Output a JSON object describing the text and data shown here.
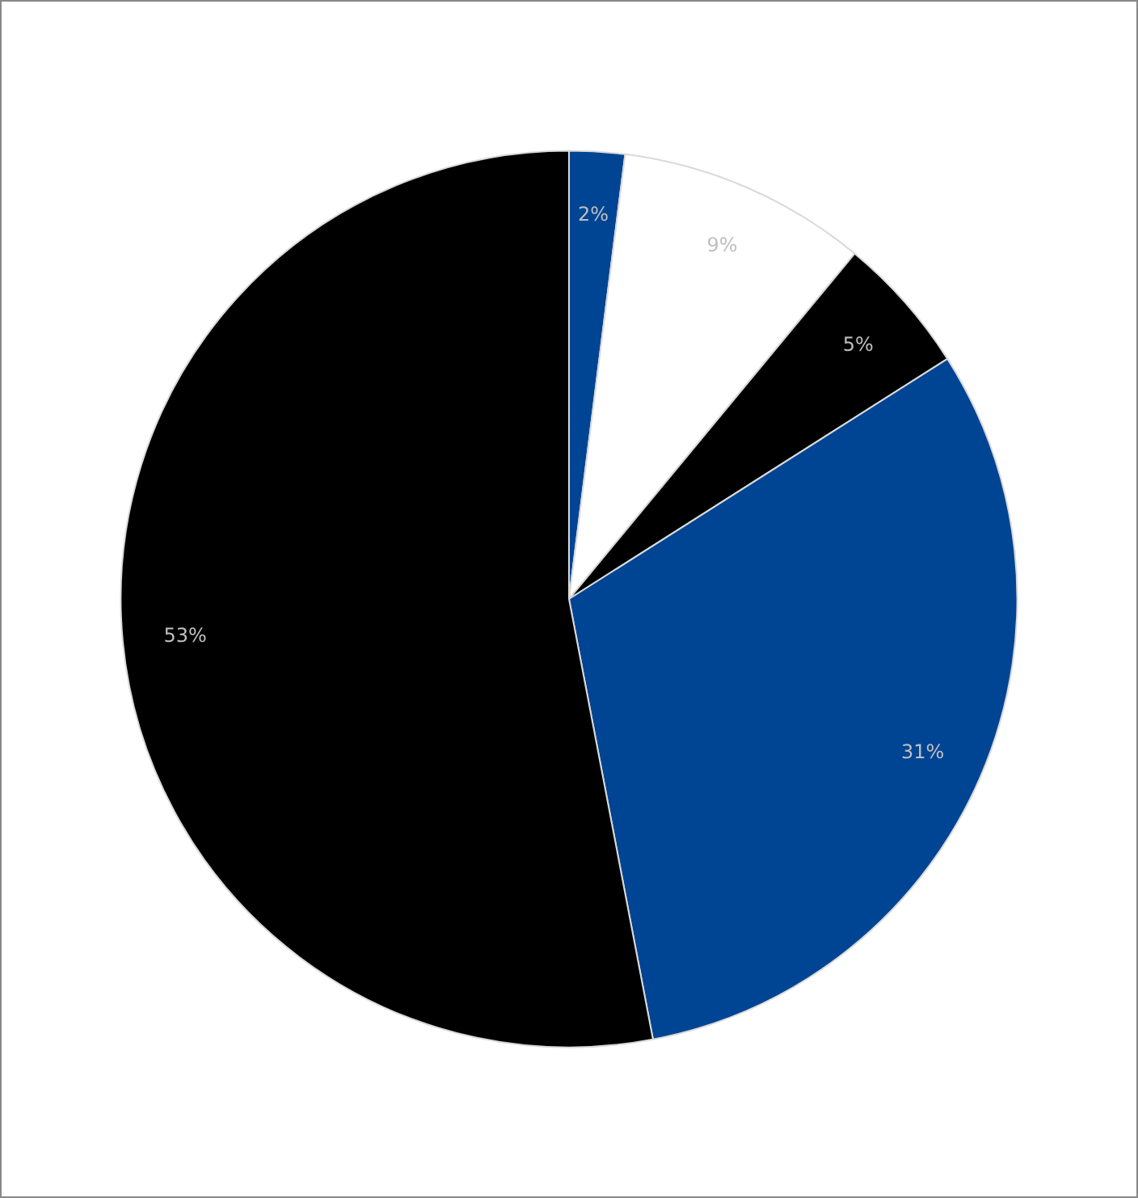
{
  "chart_data": {
    "type": "pie",
    "categories": [
      null,
      null,
      null,
      null,
      null
    ],
    "values": [
      2,
      9,
      5,
      31,
      53
    ],
    "colors": [
      "#004494",
      "#ffffff",
      "#000000",
      "#004494",
      "#000000"
    ],
    "value_labels": [
      "2%",
      "9%",
      "5%",
      "31%",
      "53%"
    ]
  }
}
